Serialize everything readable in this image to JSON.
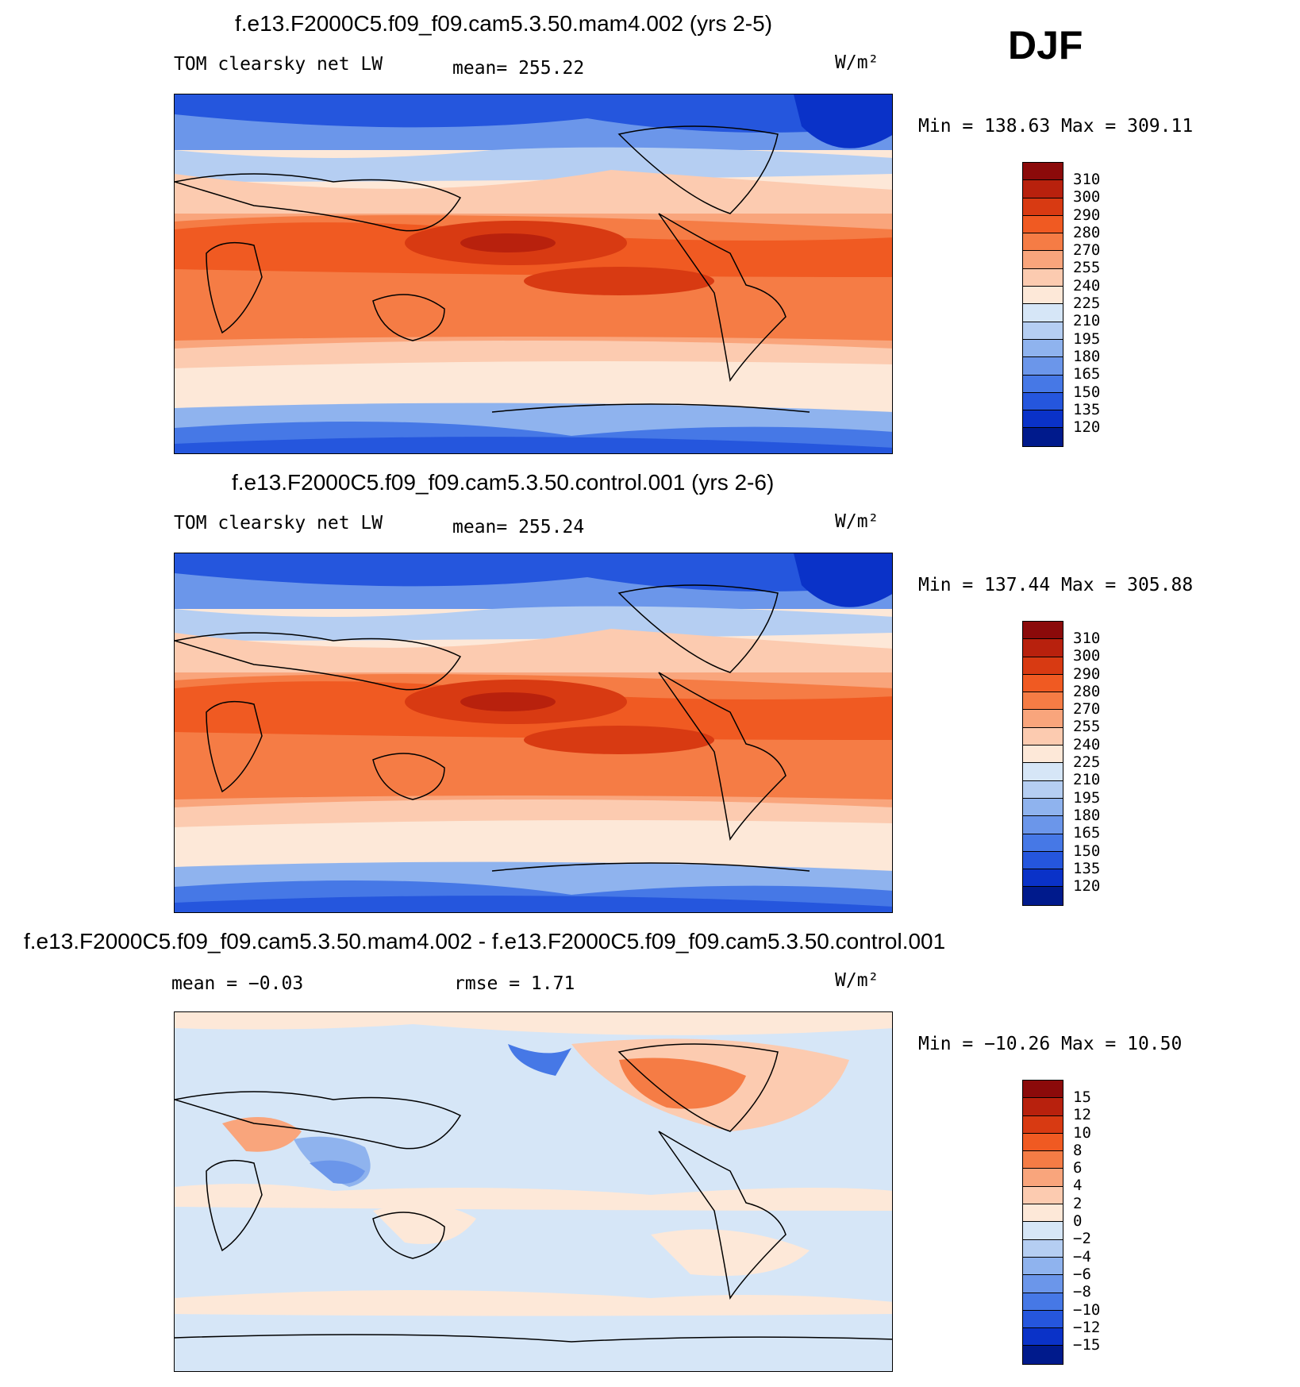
{
  "season": "DJF",
  "panels": [
    {
      "title": "f.e13.F2000C5.f09_f09.cam5.3.50.mam4.002 (yrs 2-5)",
      "left_label": "TOM clearsky net LW",
      "center_label": "mean= 255.22",
      "units": "W/m²",
      "minmax": "Min = 138.63 Max = 309.11",
      "colorbar_labels": [
        "310",
        "300",
        "290",
        "280",
        "270",
        "255",
        "240",
        "225",
        "210",
        "195",
        "180",
        "165",
        "150",
        "135",
        "120"
      ]
    },
    {
      "title": "f.e13.F2000C5.f09_f09.cam5.3.50.control.001 (yrs 2-6)",
      "left_label": "TOM clearsky net LW",
      "center_label": "mean= 255.24",
      "units": "W/m²",
      "minmax": "Min = 137.44 Max = 305.88",
      "colorbar_labels": [
        "310",
        "300",
        "290",
        "280",
        "270",
        "255",
        "240",
        "225",
        "210",
        "195",
        "180",
        "165",
        "150",
        "135",
        "120"
      ]
    },
    {
      "title": "f.e13.F2000C5.f09_f09.cam5.3.50.mam4.002 - f.e13.F2000C5.f09_f09.cam5.3.50.control.001",
      "left_label": "mean =   −0.03",
      "center_label": "rmse =    1.71",
      "units": "W/m²",
      "minmax": "Min = −10.26 Max =   10.50",
      "colorbar_labels": [
        "15",
        "12",
        "10",
        "8",
        "6",
        "4",
        "2",
        "0",
        "−2",
        "−4",
        "−6",
        "−8",
        "−10",
        "−12",
        "−15"
      ]
    }
  ],
  "colors": {
    "full": [
      "#8b0a0a",
      "#b8210d",
      "#d83a12",
      "#f05a22",
      "#f57c45",
      "#f9a57c",
      "#fccbb0",
      "#fde8d8",
      "#d6e6f7",
      "#b5cef2",
      "#8fb3ee",
      "#6b96ea",
      "#4678e6",
      "#2556dd",
      "#0a32c8",
      "#001a8c"
    ],
    "diff": [
      "#8b0a0a",
      "#b8210d",
      "#d83a12",
      "#f05a22",
      "#f57c45",
      "#f9a57c",
      "#fccbb0",
      "#fde8d8",
      "#d6e6f7",
      "#b5cef2",
      "#8fb3ee",
      "#6b96ea",
      "#4678e6",
      "#2556dd",
      "#0a32c8",
      "#001a8c"
    ]
  }
}
